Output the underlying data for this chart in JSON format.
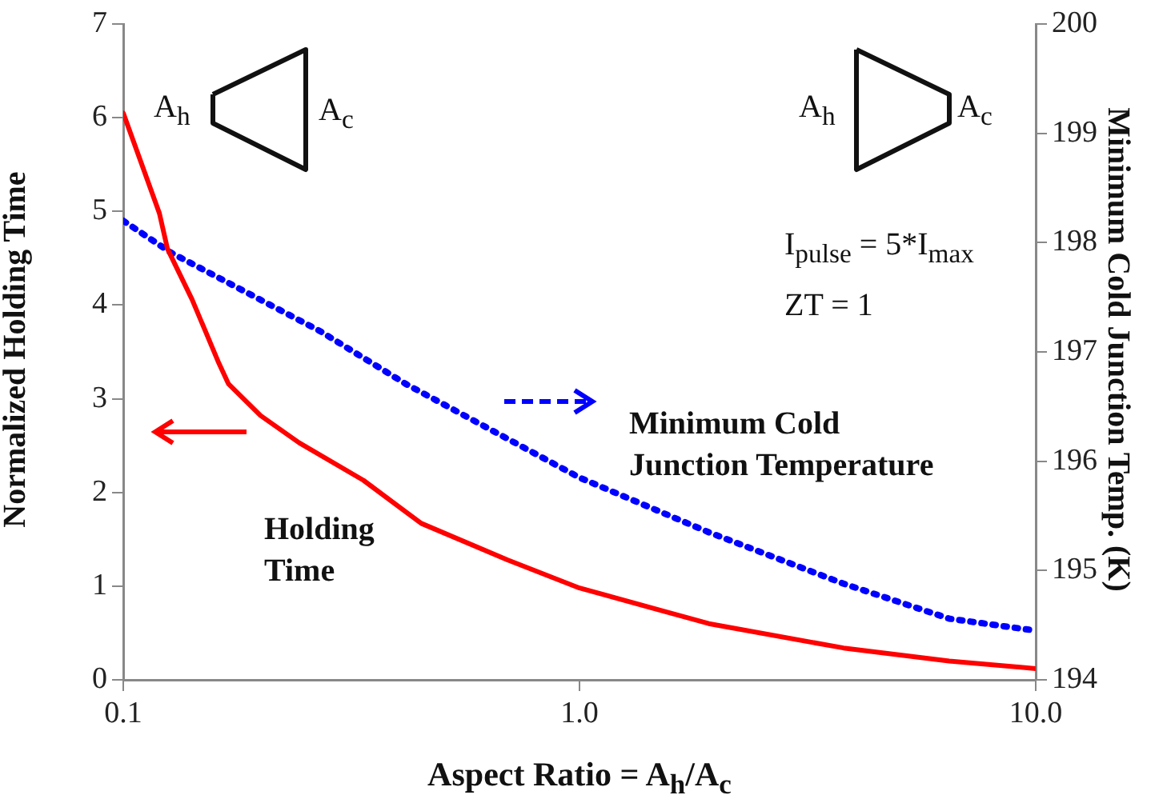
{
  "chart_data": {
    "type": "line",
    "xlabel": "Aspect Ratio = A$_{h}$/A$_{c}$",
    "ylabel": "Normalized Holding Time",
    "y2label": "Minimum Cold Junction Temp. (K)",
    "log": "x",
    "xlim": [
      0.1,
      10
    ],
    "xticks": [
      0.1,
      {
        "value": 1,
        "label": "1.0"
      },
      {
        "value": 10,
        "label": "10.0"
      }
    ],
    "ylim": [
      0,
      7
    ],
    "yticks": [
      0,
      1,
      2,
      3,
      4,
      5,
      6,
      7
    ],
    "y2lim": [
      194,
      200
    ],
    "y2ticks": [
      194,
      195,
      196,
      197,
      198,
      199,
      200
    ],
    "grid": false,
    "legend": "right",
    "marker": "none",
    "series": [
      {
        "name": "Holding Time",
        "color": "#ff0000",
        "line_style": "solid",
        "x": [
          0.1,
          0.12,
          0.125,
          0.1415,
          0.162,
          0.17,
          0.2,
          0.243,
          0.336,
          0.45,
          0.695,
          1.0,
          1.92,
          3.79,
          6.46,
          10
        ],
        "values": [
          6.05,
          4.98,
          4.6,
          4.06,
          3.38,
          3.16,
          2.82,
          2.53,
          2.13,
          1.67,
          1.28,
          0.98,
          0.6,
          0.34,
          0.2,
          0.12
        ]
      },
      {
        "name": "Minimum Cold Junction Temperature",
        "color": "#0000ff",
        "line_style": "dotted",
        "axis": "y2",
        "x": [
          0.1,
          0.127,
          0.27,
          0.415,
          1.0,
          1.92,
          3.79,
          6.46,
          10
        ],
        "values": [
          198.2,
          197.91,
          197.19,
          196.71,
          195.85,
          195.35,
          194.88,
          194.56,
          194.45
        ]
      }
    ],
    "annotations": [
      "A$_{h}$",
      "A$_{c}$",
      "A$_{h}$",
      "A$_{c}$",
      "I$_{pulse}$ = 5*I$_{max}$",
      "ZT = 1"
    ]
  }
}
